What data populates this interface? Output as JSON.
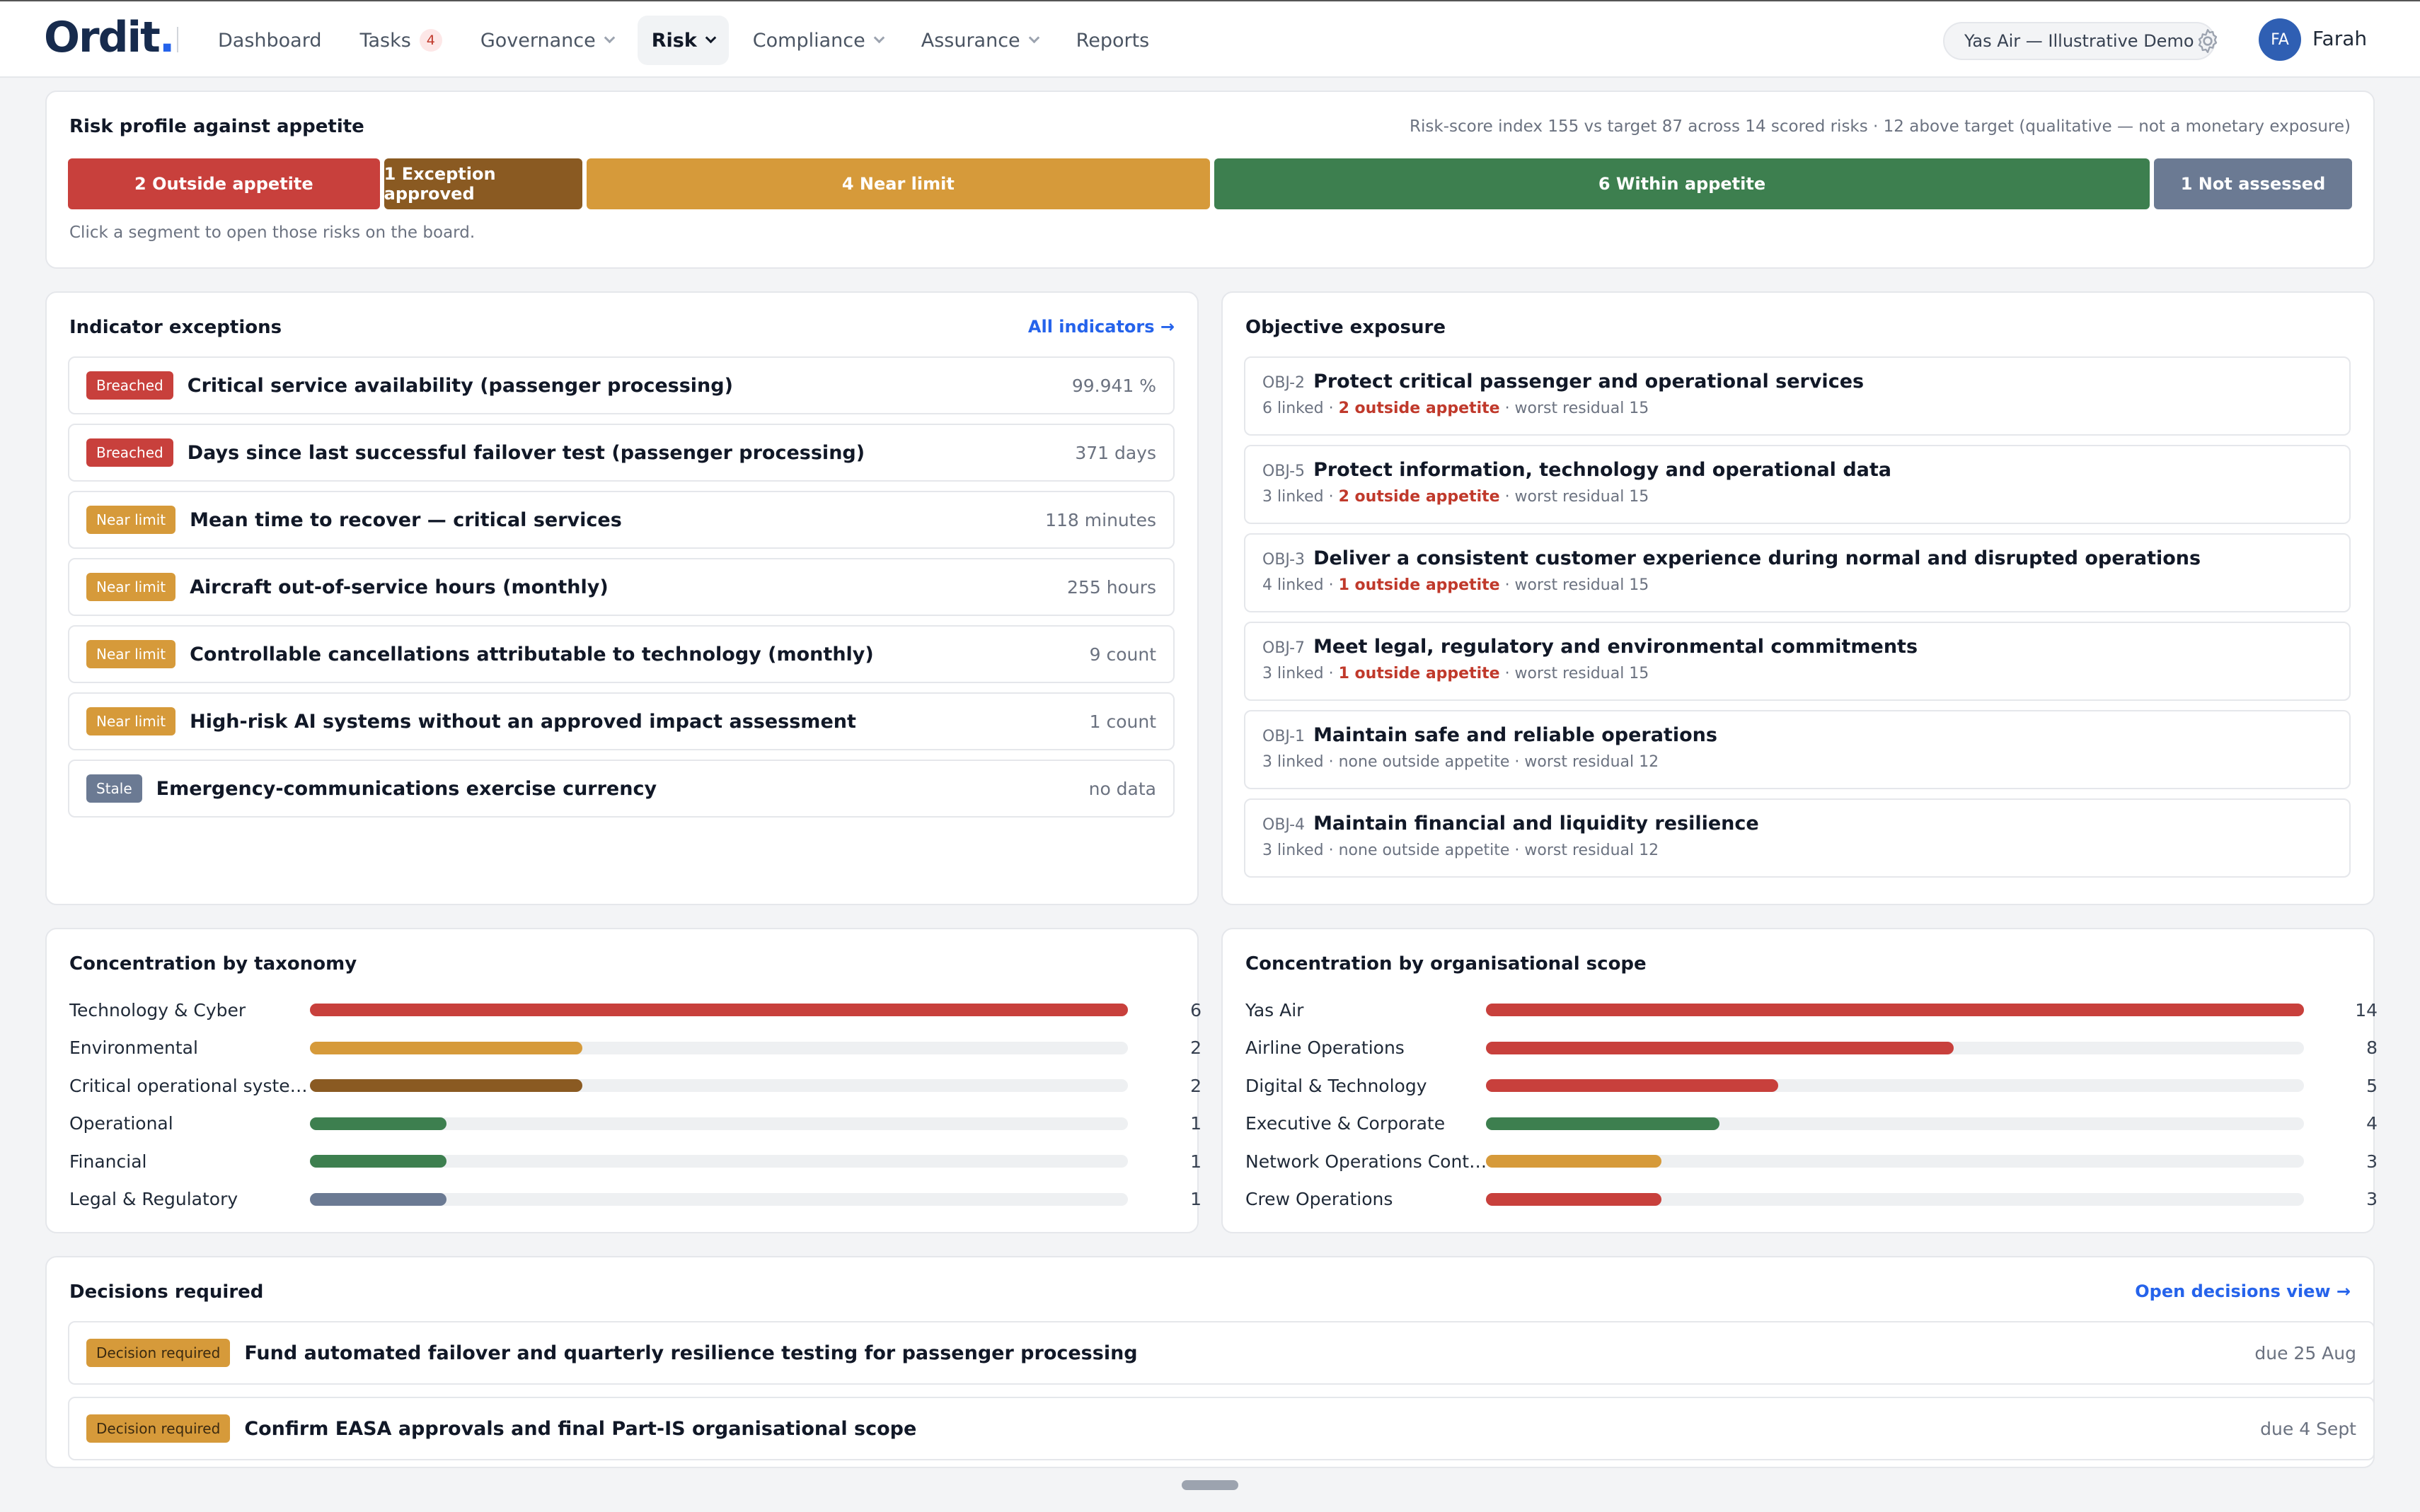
{
  "app": {
    "logo": "Ordit",
    "logo_dot": ".",
    "tenant": "Yas Air — Illustrative Demo",
    "user_initials": "FA",
    "user_name": "Farah"
  },
  "nav": {
    "dashboard": "Dashboard",
    "tasks": "Tasks",
    "tasks_count": "4",
    "governance": "Governance",
    "risk": "Risk",
    "compliance": "Compliance",
    "assurance": "Assurance",
    "reports": "Reports"
  },
  "profile": {
    "title": "Risk profile against appetite",
    "summary": "Risk-score index 155 vs target 87 across 14 scored risks · 12 above target (qualitative — not a monetary exposure)",
    "hint": "Click a segment to open those risks on the board.",
    "segments": [
      {
        "label": "2 Outside appetite",
        "count": 2,
        "color": "#c8403c"
      },
      {
        "label": "1 Exception approved",
        "count": 1,
        "color": "#8a5a22"
      },
      {
        "label": "4 Near limit",
        "count": 4,
        "color": "#d69a3a"
      },
      {
        "label": "6 Within appetite",
        "count": 6,
        "color": "#3d7f4f"
      },
      {
        "label": "1 Not assessed",
        "count": 1,
        "color": "#6b7a93"
      }
    ]
  },
  "indicators": {
    "title": "Indicator exceptions",
    "link": "All indicators →",
    "rows": [
      {
        "tag": "Breached",
        "name": "Critical service availability (passenger processing)",
        "value": "99.941 %"
      },
      {
        "tag": "Breached",
        "name": "Days since last successful failover test (passenger processing)",
        "value": "371 days"
      },
      {
        "tag": "Near limit",
        "name": "Mean time to recover — critical services",
        "value": "118 minutes"
      },
      {
        "tag": "Near limit",
        "name": "Aircraft out-of-service hours (monthly)",
        "value": "255 hours"
      },
      {
        "tag": "Near limit",
        "name": "Controllable cancellations attributable to technology (monthly)",
        "value": "9 count"
      },
      {
        "tag": "Near limit",
        "name": "High-risk AI systems without an approved impact assessment",
        "value": "1 count"
      },
      {
        "tag": "Stale",
        "name": "Emergency-communications exercise currency",
        "value": "no data"
      }
    ]
  },
  "objectives": {
    "title": "Objective exposure",
    "rows": [
      {
        "id": "OBJ-2",
        "name": "Protect critical passenger and operational services",
        "linked": "6 linked · ",
        "outside": "2 outside appetite",
        "outside_red": true,
        "worst": " · worst residual 15"
      },
      {
        "id": "OBJ-5",
        "name": "Protect information, technology and operational data",
        "linked": "3 linked · ",
        "outside": "2 outside appetite",
        "outside_red": true,
        "worst": " · worst residual 15"
      },
      {
        "id": "OBJ-3",
        "name": "Deliver a consistent customer experience during normal and disrupted operations",
        "linked": "4 linked · ",
        "outside": "1 outside appetite",
        "outside_red": true,
        "worst": " · worst residual 15"
      },
      {
        "id": "OBJ-7",
        "name": "Meet legal, regulatory and environmental commitments",
        "linked": "3 linked · ",
        "outside": "1 outside appetite",
        "outside_red": true,
        "worst": " · worst residual 15"
      },
      {
        "id": "OBJ-1",
        "name": "Maintain safe and reliable operations",
        "linked": "3 linked · ",
        "outside": "none outside appetite",
        "outside_red": false,
        "worst": " · worst residual 12"
      },
      {
        "id": "OBJ-4",
        "name": "Maintain financial and liquidity resilience",
        "linked": "3 linked · ",
        "outside": "none outside appetite",
        "outside_red": false,
        "worst": " · worst residual 12"
      }
    ]
  },
  "taxonomy": {
    "title": "Concentration by taxonomy",
    "max": 6,
    "rows": [
      {
        "label": "Technology & Cyber",
        "value": 6,
        "color": "#c8403c"
      },
      {
        "label": "Environmental",
        "value": 2,
        "color": "#d69a3a"
      },
      {
        "label": "Critical operational syste…",
        "value": 2,
        "color": "#8a5a22"
      },
      {
        "label": "Operational",
        "value": 1,
        "color": "#3d7f4f"
      },
      {
        "label": "Financial",
        "value": 1,
        "color": "#3d7f4f"
      },
      {
        "label": "Legal & Regulatory",
        "value": 1,
        "color": "#6b7a93"
      }
    ]
  },
  "scope": {
    "title": "Concentration by organisational scope",
    "max": 14,
    "rows": [
      {
        "label": "Yas Air",
        "value": 14,
        "color": "#c8403c"
      },
      {
        "label": "Airline Operations",
        "value": 8,
        "color": "#c8403c"
      },
      {
        "label": "Digital & Technology",
        "value": 5,
        "color": "#c8403c"
      },
      {
        "label": "Executive & Corporate",
        "value": 4,
        "color": "#3d7f4f"
      },
      {
        "label": "Network Operations Cont…",
        "value": 3,
        "color": "#d69a3a"
      },
      {
        "label": "Crew Operations",
        "value": 3,
        "color": "#c8403c"
      }
    ]
  },
  "decisions": {
    "title": "Decisions required",
    "link": "Open decisions view →",
    "rows": [
      {
        "tag": "Decision required",
        "name": "Fund automated failover and quarterly resilience testing for passenger processing",
        "due": "due 25 Aug"
      },
      {
        "tag": "Decision required",
        "name": "Confirm EASA approvals and final Part-IS organisational scope",
        "due": "due 4 Sept"
      }
    ]
  }
}
